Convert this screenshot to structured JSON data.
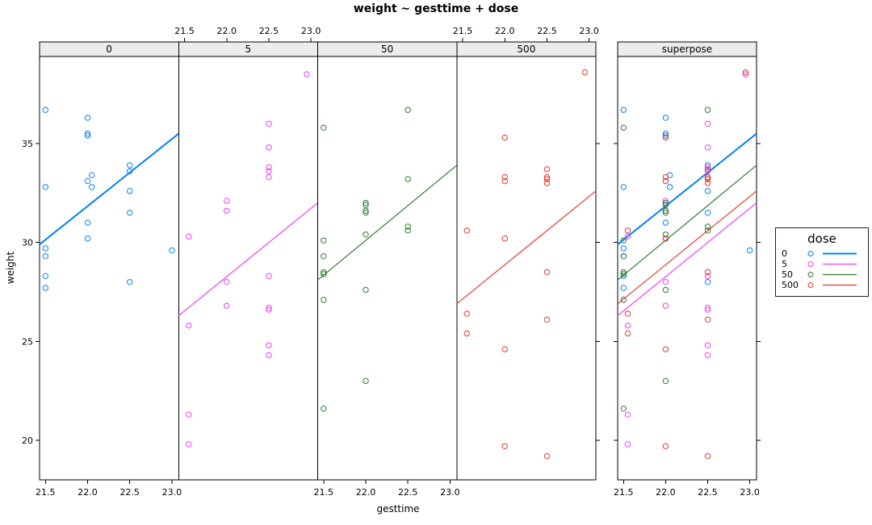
{
  "chart_data": {
    "type": "scatter",
    "title": "weight ~ gesttime + dose",
    "xlabel": "gesttime",
    "ylabel": "weight",
    "xlim": [
      21.43,
      23.08
    ],
    "ylim": [
      18.0,
      39.4
    ],
    "x_tick_values": [
      21.5,
      22.0,
      22.5,
      23.0
    ],
    "x_tick_labels": [
      "21.5",
      "22.0",
      "22.5",
      "23.0"
    ],
    "y_tick_values": [
      20,
      25,
      30,
      35
    ],
    "y_tick_labels": [
      "20",
      "25",
      "30",
      "35"
    ],
    "grid": false,
    "strip_fill": "#ececec",
    "legend": {
      "title": "dose",
      "position": "right"
    },
    "groups": [
      {
        "name": "0",
        "color": "#0080ff",
        "line_width": 2,
        "line": {
          "x": [
            21.43,
            23.08
          ],
          "y": [
            29.9,
            35.5
          ]
        },
        "points": [
          [
            21.5,
            36.7
          ],
          [
            21.5,
            32.8
          ],
          [
            21.5,
            29.7
          ],
          [
            21.5,
            29.3
          ],
          [
            21.5,
            28.3
          ],
          [
            21.5,
            27.7
          ],
          [
            22.0,
            36.3
          ],
          [
            22.0,
            35.5
          ],
          [
            22.0,
            35.4
          ],
          [
            22.05,
            33.4
          ],
          [
            22.0,
            33.1
          ],
          [
            22.05,
            32.8
          ],
          [
            22.0,
            31.0
          ],
          [
            22.0,
            30.2
          ],
          [
            22.5,
            33.9
          ],
          [
            22.5,
            33.6
          ],
          [
            22.5,
            32.6
          ],
          [
            22.5,
            31.5
          ],
          [
            22.5,
            28.0
          ],
          [
            23.0,
            29.6
          ]
        ]
      },
      {
        "name": "5",
        "color": "#f53df5",
        "line_width": 1.2,
        "line": {
          "x": [
            21.43,
            23.08
          ],
          "y": [
            26.3,
            32.0
          ]
        },
        "points": [
          [
            21.55,
            30.3
          ],
          [
            21.55,
            25.8
          ],
          [
            21.55,
            21.3
          ],
          [
            21.55,
            19.8
          ],
          [
            22.0,
            32.1
          ],
          [
            22.0,
            31.6
          ],
          [
            22.0,
            28.0
          ],
          [
            22.0,
            26.8
          ],
          [
            22.5,
            36.0
          ],
          [
            22.5,
            34.8
          ],
          [
            22.5,
            33.8
          ],
          [
            22.5,
            33.6
          ],
          [
            22.5,
            33.3
          ],
          [
            22.5,
            28.3
          ],
          [
            22.5,
            26.7
          ],
          [
            22.5,
            26.6
          ],
          [
            22.5,
            24.8
          ],
          [
            22.5,
            24.3
          ],
          [
            22.95,
            38.5
          ]
        ]
      },
      {
        "name": "50",
        "color": "#2d7a2d",
        "line_width": 1.2,
        "line": {
          "x": [
            21.43,
            23.08
          ],
          "y": [
            28.1,
            33.9
          ]
        },
        "points": [
          [
            21.5,
            35.8
          ],
          [
            21.5,
            30.1
          ],
          [
            21.5,
            29.3
          ],
          [
            21.5,
            28.5
          ],
          [
            21.5,
            28.4
          ],
          [
            21.5,
            27.1
          ],
          [
            21.5,
            21.6
          ],
          [
            22.0,
            32.0
          ],
          [
            22.0,
            31.9
          ],
          [
            22.0,
            31.6
          ],
          [
            22.0,
            31.5
          ],
          [
            22.0,
            30.4
          ],
          [
            22.0,
            27.6
          ],
          [
            22.0,
            23.0
          ],
          [
            22.5,
            36.7
          ],
          [
            22.5,
            33.2
          ],
          [
            22.5,
            30.8
          ],
          [
            22.5,
            30.6
          ]
        ]
      },
      {
        "name": "500",
        "color": "#e8392f",
        "line_width": 1.2,
        "line": {
          "x": [
            21.43,
            23.08
          ],
          "y": [
            26.9,
            32.6
          ]
        },
        "points": [
          [
            21.55,
            30.6
          ],
          [
            21.55,
            26.4
          ],
          [
            21.55,
            25.4
          ],
          [
            22.0,
            35.3
          ],
          [
            22.0,
            33.3
          ],
          [
            22.0,
            33.1
          ],
          [
            22.0,
            30.2
          ],
          [
            22.0,
            24.6
          ],
          [
            22.0,
            19.7
          ],
          [
            22.5,
            33.7
          ],
          [
            22.5,
            33.3
          ],
          [
            22.5,
            33.2
          ],
          [
            22.5,
            33.0
          ],
          [
            22.5,
            28.5
          ],
          [
            22.5,
            26.1
          ],
          [
            22.5,
            19.2
          ],
          [
            22.95,
            38.6
          ]
        ]
      }
    ],
    "panels": [
      {
        "label": "0",
        "groups": [
          "0"
        ],
        "x_axis": "bottom",
        "y_axis_labels": true
      },
      {
        "label": "5",
        "groups": [
          "5"
        ],
        "x_axis": "top"
      },
      {
        "label": "50",
        "groups": [
          "50"
        ],
        "x_axis": "bottom"
      },
      {
        "label": "500",
        "groups": [
          "500"
        ],
        "x_axis": "top",
        "y_ticks_right": true
      },
      {
        "label": "superpose",
        "groups": [
          "0",
          "5",
          "50",
          "500"
        ],
        "x_axis": "bottom",
        "y_ticks_left": true,
        "y_ticks_right": true
      }
    ]
  }
}
